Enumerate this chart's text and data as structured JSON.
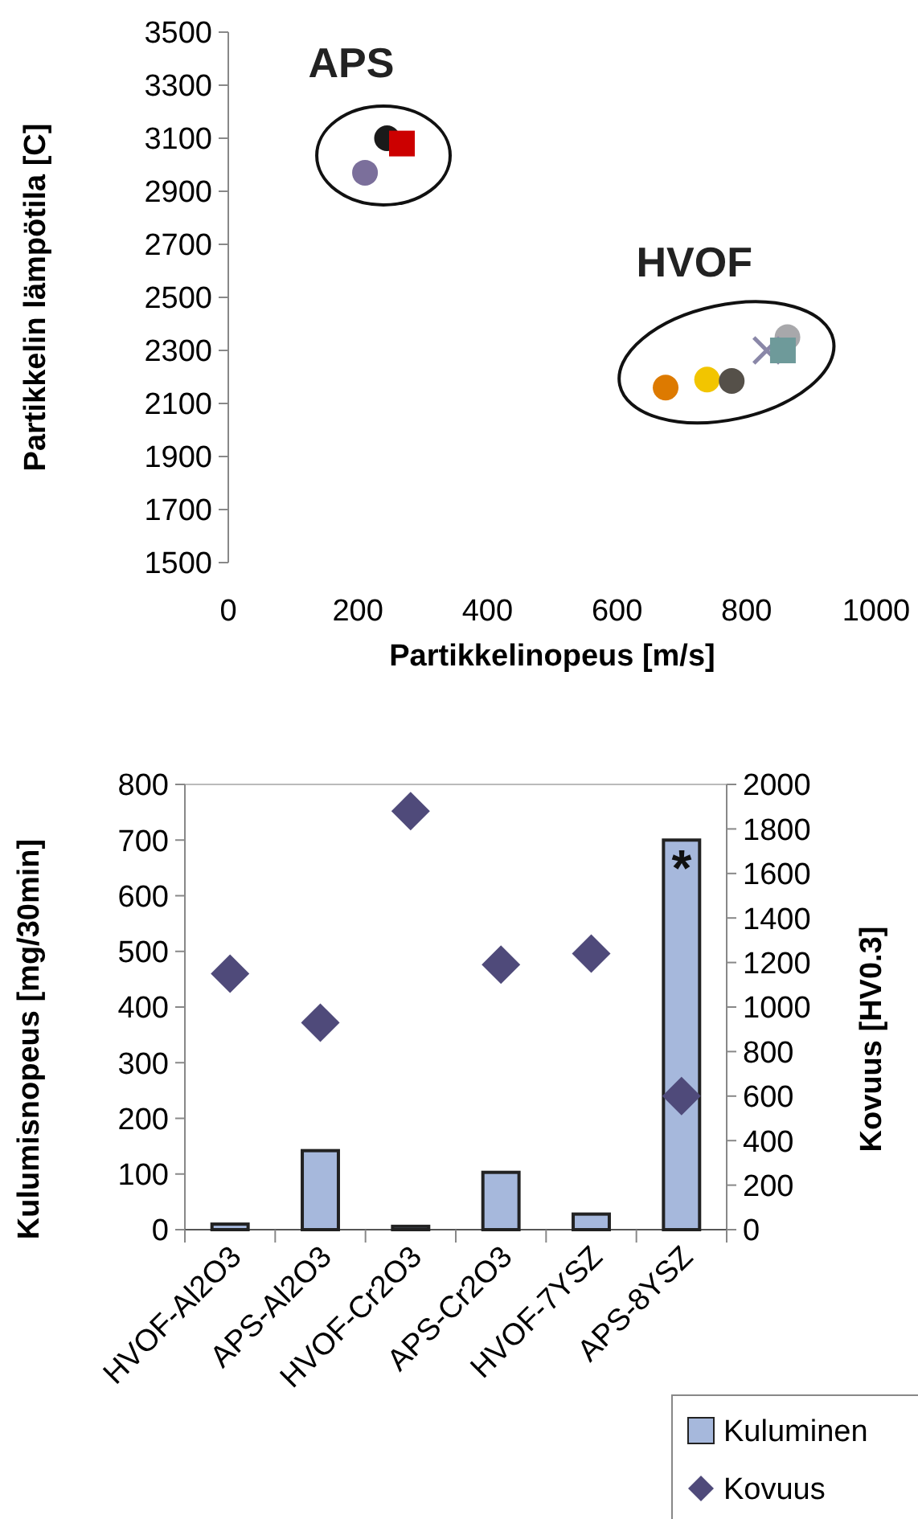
{
  "chart_data": [
    {
      "type": "scatter",
      "xlabel": "Partikkelinopeus [m/s]",
      "ylabel": "Partikkelin lämpötila [C]",
      "xlim": [
        0,
        1000
      ],
      "xticks": [
        0,
        200,
        400,
        600,
        800,
        1000
      ],
      "ylim": [
        1500,
        3500
      ],
      "yticks": [
        1500,
        1700,
        1900,
        2100,
        2300,
        2500,
        2700,
        2900,
        3100,
        3300,
        3500
      ],
      "grid": false,
      "annotations": [
        "APS",
        "HVOF"
      ],
      "series": [
        {
          "color": "#1a1a1a",
          "marker": "circle",
          "x": [
            245
          ],
          "values": [
            3100
          ]
        },
        {
          "color": "#cc0000",
          "marker": "square",
          "x": [
            268
          ],
          "values": [
            3080
          ]
        },
        {
          "color": "#7b6f9b",
          "marker": "circle",
          "x": [
            211
          ],
          "values": [
            2970
          ]
        },
        {
          "color": "#dd7a00",
          "marker": "circle",
          "x": [
            675
          ],
          "values": [
            2160
          ]
        },
        {
          "color": "#f2c500",
          "marker": "circle",
          "x": [
            739
          ],
          "values": [
            2190
          ]
        },
        {
          "color": "#555049",
          "marker": "circle",
          "x": [
            777
          ],
          "values": [
            2185
          ]
        },
        {
          "color": "#a8a8ab",
          "marker": "circle",
          "x": [
            863
          ],
          "values": [
            2350
          ]
        },
        {
          "color": "#8a87a8",
          "marker": "cross",
          "x": [
            831
          ],
          "values": [
            2300
          ]
        },
        {
          "color": "#6e9a9a",
          "marker": "square",
          "x": [
            856
          ],
          "values": [
            2300
          ]
        }
      ]
    },
    {
      "type": "bar",
      "ylabel": "Kulumisnopeus [mg/30min]",
      "y2label": "Kovuus [HV0.3]",
      "categories": [
        "HVOF-Al2O3",
        "APS-Al2O3",
        "HVOF-Cr2O3",
        "APS-Cr2O3",
        "HVOF-7YSZ",
        "APS-8YSZ"
      ],
      "ylim": [
        0,
        800
      ],
      "yticks": [
        0,
        100,
        200,
        300,
        400,
        500,
        600,
        700,
        800
      ],
      "y2lim": [
        0,
        2000
      ],
      "y2ticks": [
        0,
        200,
        400,
        600,
        800,
        1000,
        1200,
        1400,
        1600,
        1800,
        2000
      ],
      "grid": false,
      "legend": "bottom right",
      "annotations": [
        "*"
      ],
      "series": [
        {
          "name": "Kuluminen",
          "type": "bar",
          "color": "#a6b8dc",
          "values": [
            10,
            142,
            6,
            103,
            28,
            700
          ]
        },
        {
          "name": "Kovuus",
          "type": "scatter",
          "axis": "y2",
          "marker": "diamond",
          "color": "#4f4a7a",
          "values": [
            1150,
            930,
            1880,
            1190,
            1240,
            600
          ]
        }
      ]
    }
  ]
}
